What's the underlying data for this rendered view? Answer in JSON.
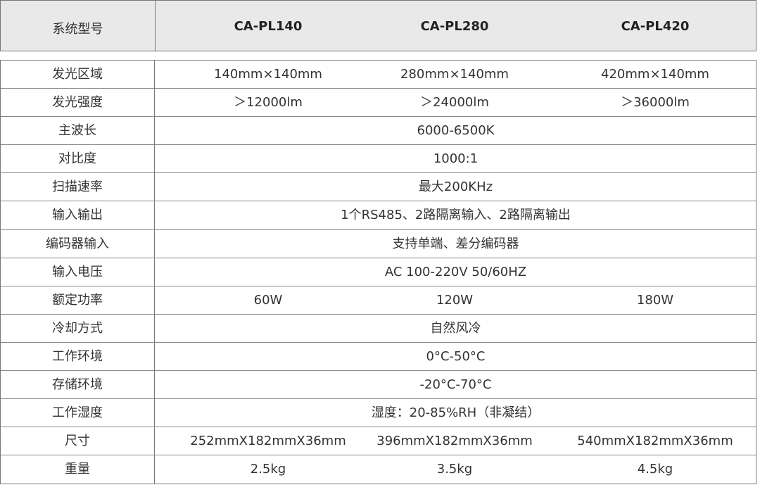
{
  "header": {
    "label": "系统型号",
    "models": [
      "CA-PL140",
      "CA-PL280",
      "CA-PL420"
    ]
  },
  "rows": [
    {
      "label": "发光区域",
      "values": [
        "140mm×140mm",
        "280mm×140mm",
        "420mm×140mm"
      ]
    },
    {
      "label": "发光强度",
      "values": [
        "＞12000lm",
        "＞24000lm",
        "＞36000lm"
      ]
    },
    {
      "label": "主波长",
      "value": "6000-6500K"
    },
    {
      "label": "对比度",
      "value": "1000:1"
    },
    {
      "label": "扫描速率",
      "value": "最大200KHz"
    },
    {
      "label": "输入输出",
      "value": "1个RS485、2路隔离输入、2路隔离输出"
    },
    {
      "label": "编码器输入",
      "value": "支持单端、差分编码器"
    },
    {
      "label": "输入电压",
      "value": "AC 100-220V  50/60HZ"
    },
    {
      "label": "额定功率",
      "values": [
        "60W",
        "120W",
        "180W"
      ]
    },
    {
      "label": "冷却方式",
      "value": "自然风冷"
    },
    {
      "label": "工作环境",
      "value": "0°C-50°C"
    },
    {
      "label": "存储环境",
      "value": "-20°C-70°C"
    },
    {
      "label": "工作湿度",
      "value": "湿度：20-85%RH（非凝结）"
    },
    {
      "label": "尺寸",
      "values": [
        "252mmX182mmX36mm",
        "396mmX182mmX36mm",
        "540mmX182mmX36mm"
      ]
    },
    {
      "label": "重量",
      "values": [
        "2.5kg",
        "3.5kg",
        "4.5kg"
      ]
    }
  ]
}
